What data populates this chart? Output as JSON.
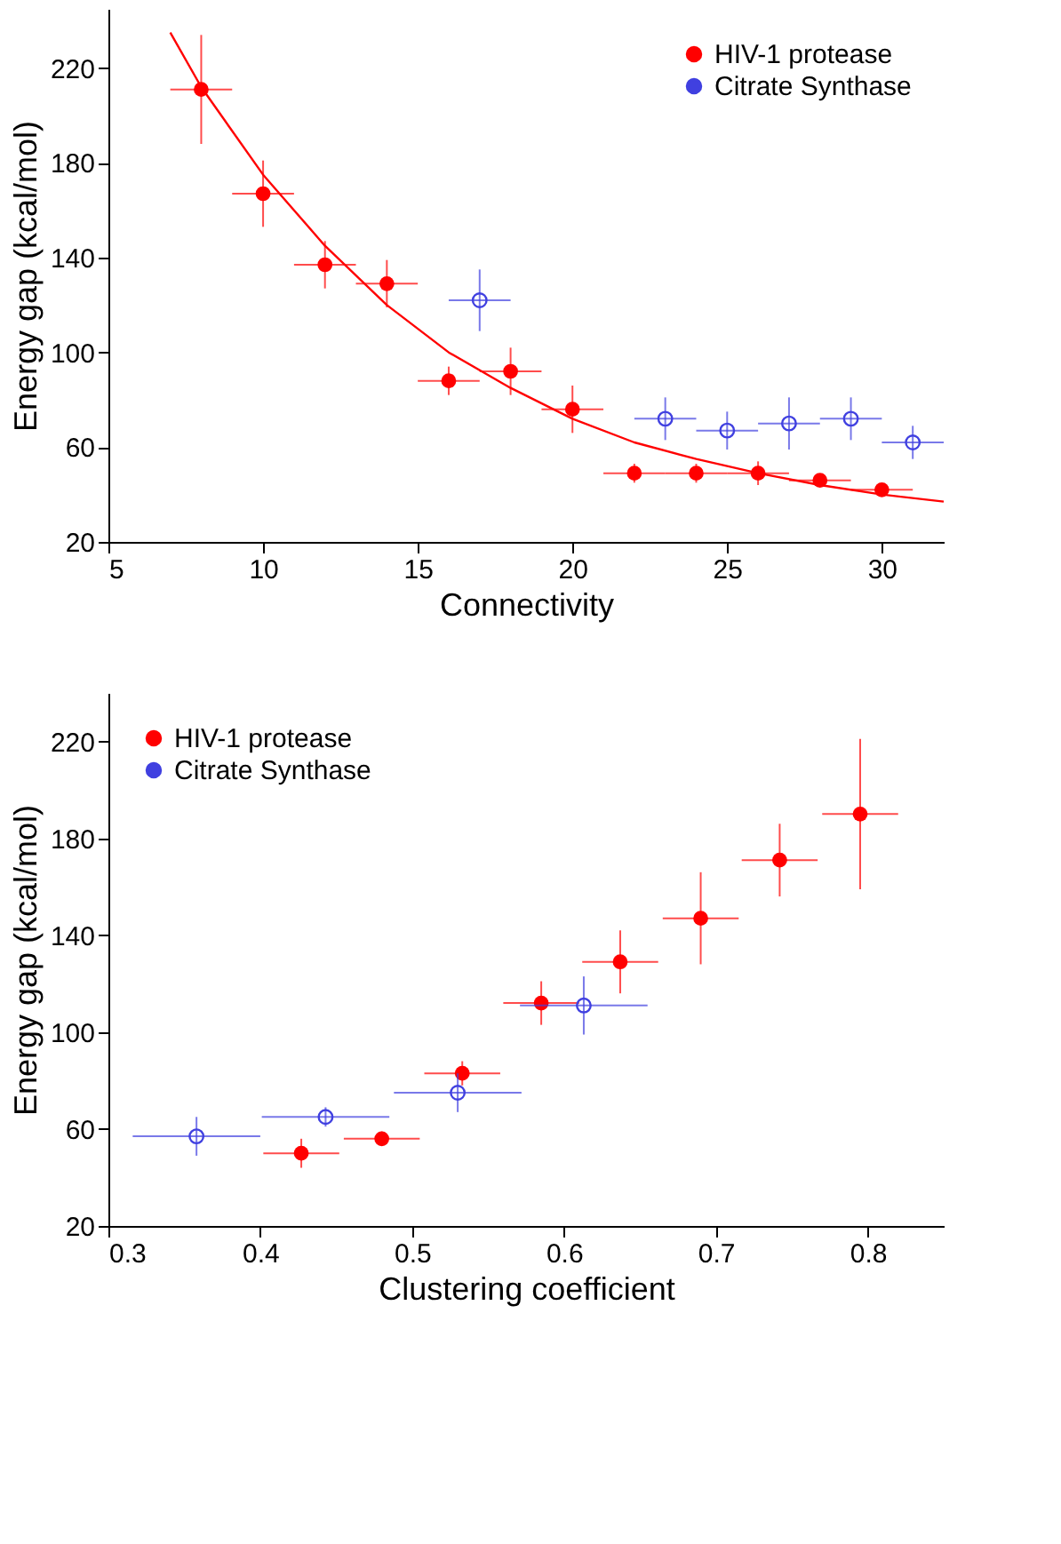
{
  "chart_data": [
    {
      "type": "scatter",
      "xlabel": "Connectivity",
      "ylabel": "Energy gap (kcal/mol)",
      "xlim": [
        5,
        32
      ],
      "xticks": [
        5,
        10,
        15,
        20,
        25,
        30
      ],
      "ylim": [
        20,
        245
      ],
      "yticks": [
        20,
        60,
        100,
        140,
        180,
        220
      ],
      "grid": false,
      "legend": "top right",
      "marker": "circle",
      "series": [
        {
          "name": "HIV-1 protease",
          "color": "#ff0000",
          "x": [
            8,
            10,
            12,
            14,
            16,
            18,
            20,
            22,
            24,
            26,
            28,
            30
          ],
          "values": [
            211,
            167,
            137,
            129,
            88,
            92,
            76,
            49,
            49,
            49,
            46,
            42
          ],
          "errors": [
            23,
            14,
            10,
            10,
            6,
            10,
            10,
            4,
            4,
            5,
            2,
            2
          ],
          "xerrors": [
            1,
            1,
            1,
            1,
            1,
            1,
            1,
            1,
            1,
            1,
            1,
            1
          ]
        },
        {
          "name": "Citrate Synthase",
          "color": "#4040e0",
          "x": [
            17,
            23,
            25,
            27,
            29,
            31
          ],
          "values": [
            122,
            72,
            67,
            70,
            72,
            62
          ],
          "errors": [
            13,
            9,
            8,
            11,
            9,
            7
          ],
          "xerrors": [
            1,
            1,
            1,
            1,
            1,
            1
          ]
        },
        {
          "type": "line",
          "marker": "none",
          "line_style": "solid",
          "color": "#ff0000",
          "x": [
            7,
            8,
            10,
            12,
            14,
            16,
            18,
            20,
            22,
            24,
            26,
            28,
            30,
            32
          ],
          "values": [
            235,
            212,
            175,
            145,
            120,
            100,
            85,
            72,
            62,
            55,
            49,
            44,
            40,
            37
          ]
        }
      ]
    },
    {
      "type": "scatter",
      "xlabel": "Clustering coefficient",
      "ylabel": "Energy gap (kcal/mol)",
      "xlim": [
        0.3,
        0.85
      ],
      "xticks": [
        0.3,
        0.4,
        0.5,
        0.6,
        0.7,
        0.8
      ],
      "ylim": [
        20,
        240
      ],
      "yticks": [
        20,
        60,
        100,
        140,
        180,
        220
      ],
      "grid": false,
      "legend": "top left",
      "marker": "circle",
      "series": [
        {
          "name": "HIV-1 protease",
          "color": "#ff0000",
          "x": [
            0.427,
            0.48,
            0.533,
            0.585,
            0.637,
            0.69,
            0.742,
            0.795
          ],
          "values": [
            50,
            56,
            83,
            112,
            129,
            147,
            171,
            190
          ],
          "errors": [
            6,
            3,
            5,
            9,
            13,
            19,
            15,
            31
          ],
          "xerrors": [
            0.025,
            0.025,
            0.025,
            0.025,
            0.025,
            0.025,
            0.025,
            0.025
          ]
        },
        {
          "name": "Citrate Synthase",
          "color": "#4040e0",
          "x": [
            0.358,
            0.443,
            0.53,
            0.613
          ],
          "values": [
            57,
            65,
            75,
            111
          ],
          "errors": [
            8,
            4,
            8,
            12
          ],
          "xerrors": [
            0.042,
            0.042,
            0.042,
            0.042
          ]
        }
      ]
    }
  ]
}
